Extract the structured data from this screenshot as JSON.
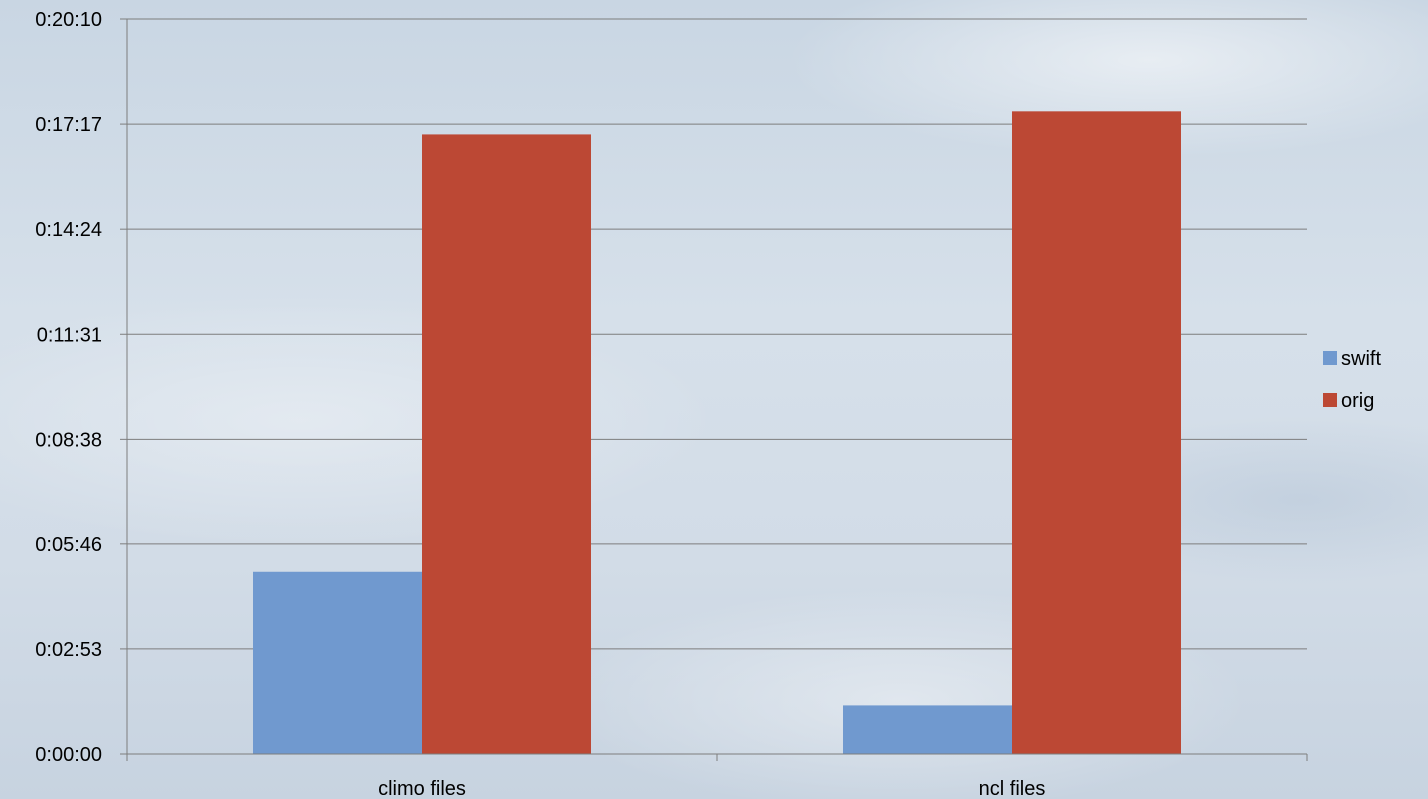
{
  "chart_data": {
    "type": "bar",
    "title": "",
    "xlabel": "",
    "ylabel": "",
    "categories": [
      "climo files",
      "ncl files"
    ],
    "series": [
      {
        "name": "swift",
        "color": "#7099cf",
        "values_seconds": [
          300,
          80
        ]
      },
      {
        "name": "orig",
        "color": "#bc4834",
        "values_seconds": [
          1020,
          1058
        ]
      }
    ],
    "y_ticks": [
      "0:00:00",
      "0:02:53",
      "0:05:46",
      "0:08:38",
      "0:11:31",
      "0:14:24",
      "0:17:17",
      "0:20:10"
    ],
    "y_tick_seconds": [
      0,
      173,
      346,
      518,
      691,
      864,
      1037,
      1210
    ],
    "ylim_seconds": [
      0,
      1210
    ],
    "grid": true,
    "legend_position": "right"
  }
}
